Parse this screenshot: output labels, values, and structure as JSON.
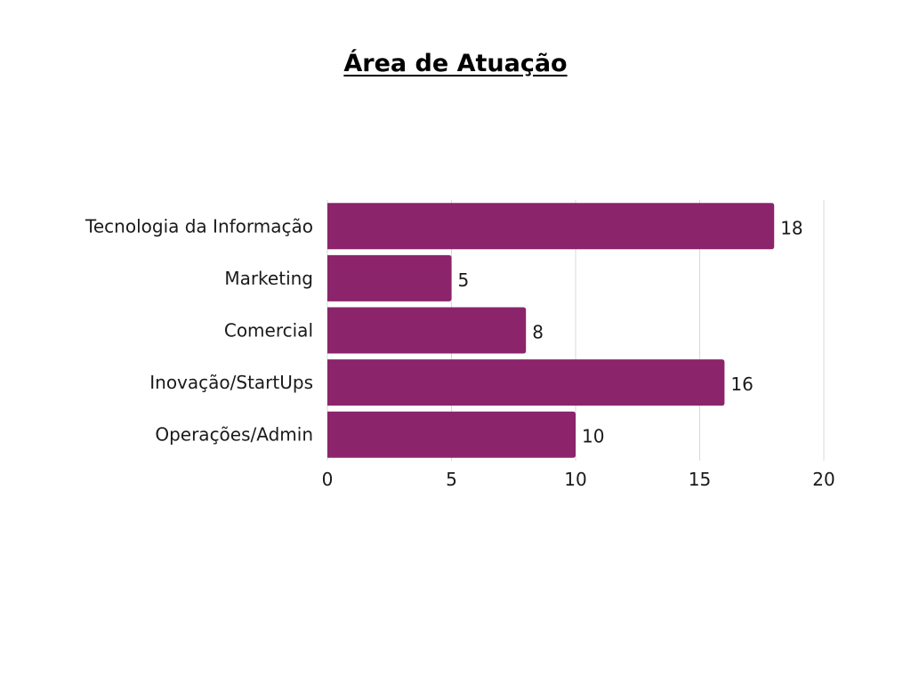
{
  "chart_data": {
    "type": "bar",
    "orientation": "horizontal",
    "title": "Área de Atuação",
    "categories": [
      "Tecnologia da Informação",
      "Marketing",
      "Comercial",
      "Inovação/StartUps",
      "Operações/Admin"
    ],
    "values": [
      18,
      5,
      8,
      16,
      10
    ],
    "xlim": [
      0,
      20
    ],
    "xticks": [
      "0",
      "5",
      "10",
      "15",
      "20"
    ],
    "xlabel": "",
    "ylabel": "",
    "grid": "vertical",
    "legend": "none",
    "bar_color": "#8b246b",
    "data_labels": true
  }
}
